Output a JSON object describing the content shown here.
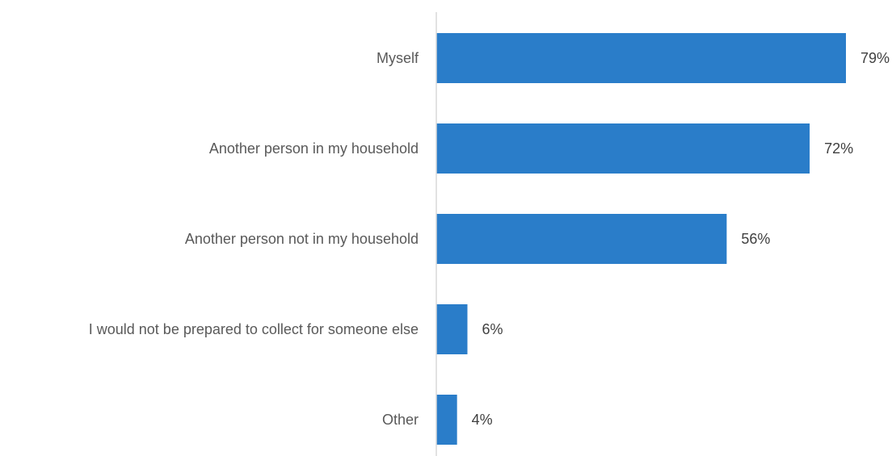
{
  "chart_data": {
    "type": "bar",
    "orientation": "horizontal",
    "categories": [
      "Myself",
      "Another person in my household",
      "Another person not in my household",
      "I would not be prepared to collect for someone else",
      "Other"
    ],
    "values": [
      79,
      72,
      56,
      6,
      4
    ],
    "value_labels": [
      "79%",
      "72%",
      "56%",
      "6%",
      "4%"
    ],
    "unit": "%",
    "xlim": [
      0,
      100
    ],
    "grid": false,
    "legend": "none",
    "bar_color": "#2a7dc9",
    "axis_color": "#d9d9d9"
  }
}
